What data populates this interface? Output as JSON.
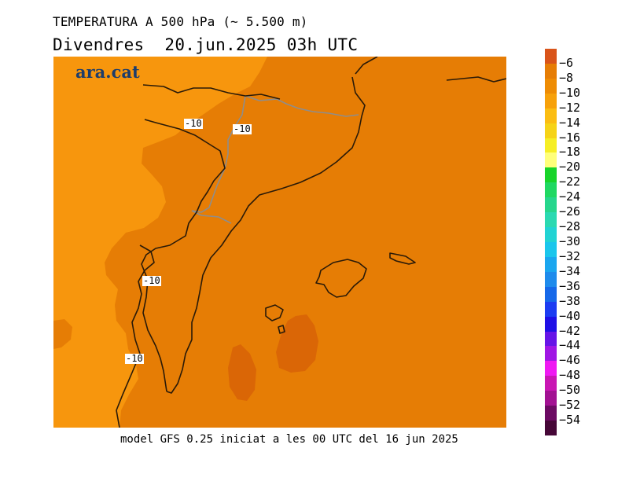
{
  "header": {
    "title": "TEMPERATURA A 500 hPa (~ 5.500 m)",
    "subtitle": "Divendres  20.jun.2025 03h UTC"
  },
  "logo": {
    "text": "ara.cat"
  },
  "footer": {
    "text": "model GFS 0.25 iniciat a les 00 UTC del 16 jun 2025"
  },
  "contour_labels": [
    "-10",
    "-10",
    "-10",
    "-10"
  ],
  "colors": {
    "western_warm": "#f7960d",
    "main": "#e67d05",
    "warmest": "#da6606",
    "coastline": "#2a1a08",
    "border": "#8d8d8d"
  },
  "colorbar": {
    "labels": [
      "-6",
      "-8",
      "-10",
      "-12",
      "-14",
      "-16",
      "-18",
      "-20",
      "-22",
      "-24",
      "-26",
      "-28",
      "-30",
      "-32",
      "-34",
      "-36",
      "-38",
      "-40",
      "-42",
      "-44",
      "-46",
      "-48",
      "-50",
      "-52",
      "-54"
    ],
    "colors": [
      "#d9541a",
      "#e67d05",
      "#ee8c04",
      "#f7a10a",
      "#fbbd12",
      "#f6d317",
      "#f6ee25",
      "#ffff7a",
      "#18d42a",
      "#1fd862",
      "#26d68c",
      "#2ad9b1",
      "#21d3d3",
      "#1ac6ec",
      "#1aa6ef",
      "#1e8bec",
      "#1668e9",
      "#1c3cf2",
      "#1f0fe6",
      "#6614e7",
      "#a016e4",
      "#ef19f2",
      "#c916b3",
      "#a21192",
      "#6c0a63",
      "#460737"
    ]
  }
}
